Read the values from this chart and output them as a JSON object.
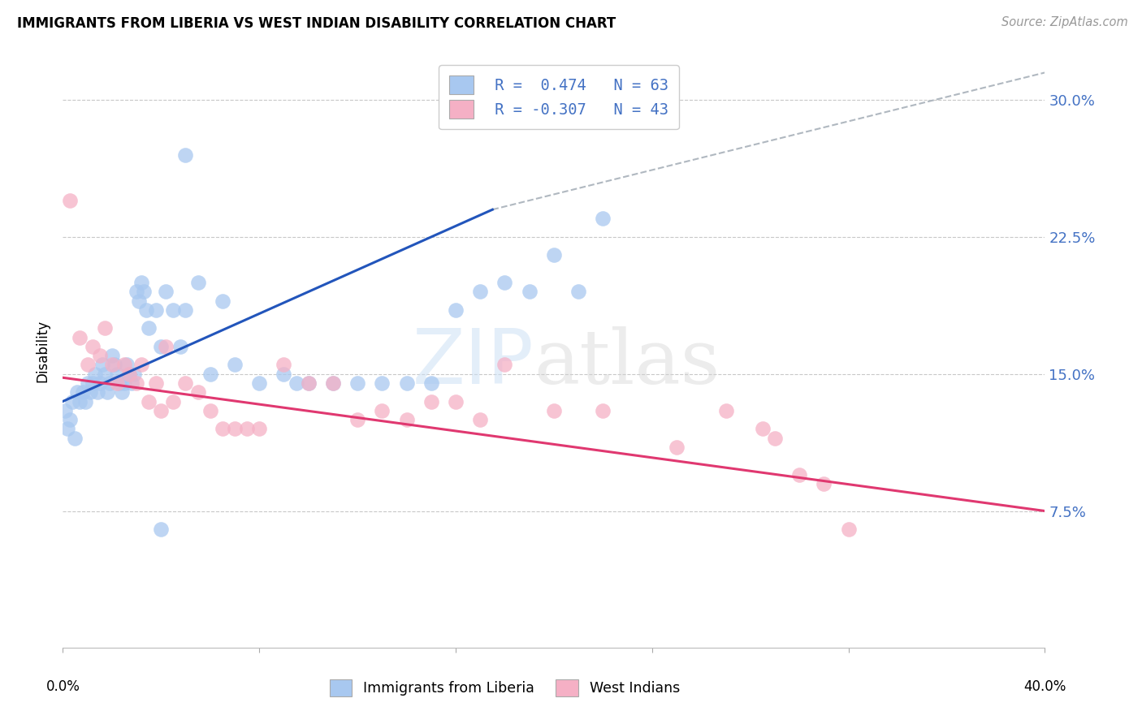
{
  "title": "IMMIGRANTS FROM LIBERIA VS WEST INDIAN DISABILITY CORRELATION CHART",
  "source": "Source: ZipAtlas.com",
  "ylabel": "Disability",
  "xlim": [
    0.0,
    0.4
  ],
  "ylim": [
    0.0,
    0.325
  ],
  "yticks": [
    0.075,
    0.15,
    0.225,
    0.3
  ],
  "ytick_labels": [
    "7.5%",
    "15.0%",
    "22.5%",
    "30.0%"
  ],
  "xtick_positions": [
    0.0,
    0.08,
    0.16,
    0.24,
    0.32,
    0.4
  ],
  "grid_color": "#c8c8c8",
  "bg_color": "#ffffff",
  "blue_dot_color": "#a8c8f0",
  "pink_dot_color": "#f5b0c5",
  "blue_line_color": "#2255bb",
  "pink_line_color": "#e03870",
  "dash_line_color": "#b0b8c0",
  "legend_label_color": "#4472c4",
  "right_axis_color": "#4472c4",
  "blue_scatter_x": [
    0.001,
    0.002,
    0.003,
    0.004,
    0.005,
    0.006,
    0.007,
    0.008,
    0.009,
    0.01,
    0.011,
    0.012,
    0.013,
    0.014,
    0.015,
    0.016,
    0.017,
    0.018,
    0.019,
    0.02,
    0.021,
    0.022,
    0.023,
    0.024,
    0.025,
    0.026,
    0.027,
    0.028,
    0.029,
    0.03,
    0.031,
    0.032,
    0.033,
    0.034,
    0.035,
    0.038,
    0.04,
    0.042,
    0.045,
    0.048,
    0.05,
    0.055,
    0.06,
    0.065,
    0.07,
    0.08,
    0.09,
    0.095,
    0.1,
    0.11,
    0.12,
    0.13,
    0.14,
    0.15,
    0.16,
    0.17,
    0.18,
    0.19,
    0.2,
    0.21,
    0.22,
    0.04,
    0.05
  ],
  "blue_scatter_y": [
    0.13,
    0.12,
    0.125,
    0.135,
    0.115,
    0.14,
    0.135,
    0.14,
    0.135,
    0.145,
    0.14,
    0.145,
    0.15,
    0.14,
    0.145,
    0.155,
    0.15,
    0.14,
    0.145,
    0.16,
    0.155,
    0.15,
    0.145,
    0.14,
    0.145,
    0.155,
    0.15,
    0.145,
    0.15,
    0.195,
    0.19,
    0.2,
    0.195,
    0.185,
    0.175,
    0.185,
    0.165,
    0.195,
    0.185,
    0.165,
    0.185,
    0.2,
    0.15,
    0.19,
    0.155,
    0.145,
    0.15,
    0.145,
    0.145,
    0.145,
    0.145,
    0.145,
    0.145,
    0.145,
    0.185,
    0.195,
    0.2,
    0.195,
    0.215,
    0.195,
    0.235,
    0.065,
    0.27
  ],
  "pink_scatter_x": [
    0.003,
    0.007,
    0.01,
    0.012,
    0.015,
    0.017,
    0.02,
    0.022,
    0.025,
    0.027,
    0.03,
    0.032,
    0.035,
    0.038,
    0.04,
    0.042,
    0.045,
    0.05,
    0.055,
    0.06,
    0.065,
    0.07,
    0.075,
    0.08,
    0.09,
    0.1,
    0.11,
    0.12,
    0.13,
    0.14,
    0.15,
    0.16,
    0.17,
    0.18,
    0.2,
    0.22,
    0.25,
    0.27,
    0.285,
    0.29,
    0.3,
    0.31,
    0.32
  ],
  "pink_scatter_y": [
    0.245,
    0.17,
    0.155,
    0.165,
    0.16,
    0.175,
    0.155,
    0.145,
    0.155,
    0.15,
    0.145,
    0.155,
    0.135,
    0.145,
    0.13,
    0.165,
    0.135,
    0.145,
    0.14,
    0.13,
    0.12,
    0.12,
    0.12,
    0.12,
    0.155,
    0.145,
    0.145,
    0.125,
    0.13,
    0.125,
    0.135,
    0.135,
    0.125,
    0.155,
    0.13,
    0.13,
    0.11,
    0.13,
    0.12,
    0.115,
    0.095,
    0.09,
    0.065
  ],
  "blue_line_x0": 0.0,
  "blue_line_y0": 0.135,
  "blue_line_x1": 0.175,
  "blue_line_y1": 0.24,
  "dash_line_x0": 0.175,
  "dash_line_y0": 0.24,
  "dash_line_x1": 0.4,
  "dash_line_y1": 0.315,
  "pink_line_x0": 0.0,
  "pink_line_y0": 0.148,
  "pink_line_x1": 0.4,
  "pink_line_y1": 0.075
}
